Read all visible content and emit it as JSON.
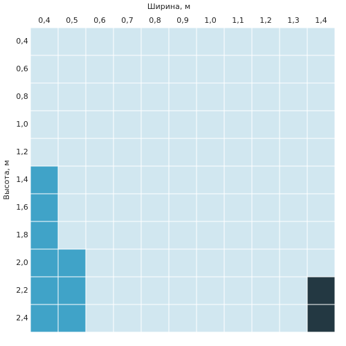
{
  "chart_data": {
    "type": "heatmap",
    "x_label": "Ширина, м",
    "y_label": "Высота, м",
    "x_categories": [
      "0,4",
      "0,5",
      "0,6",
      "0,7",
      "0,8",
      "0,9",
      "1,0",
      "1,1",
      "1,2",
      "1,3",
      "1,4"
    ],
    "y_categories": [
      "0,4",
      "0,6",
      "0,8",
      "1,0",
      "1,2",
      "1,4",
      "1,6",
      "1,8",
      "2,0",
      "2,2",
      "2,4"
    ],
    "cell_colors": [
      [
        "#d1e7f0",
        "#d1e7f0",
        "#d1e7f0",
        "#d1e7f0",
        "#d1e7f0",
        "#d1e7f0",
        "#d1e7f0",
        "#d1e7f0",
        "#d1e7f0",
        "#d1e7f0",
        "#d1e7f0"
      ],
      [
        "#d1e7f0",
        "#d1e7f0",
        "#d1e7f0",
        "#d1e7f0",
        "#d1e7f0",
        "#d1e7f0",
        "#d1e7f0",
        "#d1e7f0",
        "#d1e7f0",
        "#d1e7f0",
        "#d1e7f0"
      ],
      [
        "#d1e7f0",
        "#d1e7f0",
        "#d1e7f0",
        "#d1e7f0",
        "#d1e7f0",
        "#d1e7f0",
        "#d1e7f0",
        "#d1e7f0",
        "#d1e7f0",
        "#d1e7f0",
        "#d1e7f0"
      ],
      [
        "#d1e7f0",
        "#d1e7f0",
        "#d1e7f0",
        "#d1e7f0",
        "#d1e7f0",
        "#d1e7f0",
        "#d1e7f0",
        "#d1e7f0",
        "#d1e7f0",
        "#d1e7f0",
        "#d1e7f0"
      ],
      [
        "#d1e7f0",
        "#d1e7f0",
        "#d1e7f0",
        "#d1e7f0",
        "#d1e7f0",
        "#d1e7f0",
        "#d1e7f0",
        "#d1e7f0",
        "#d1e7f0",
        "#d1e7f0",
        "#d1e7f0"
      ],
      [
        "#40a3c8",
        "#d1e7f0",
        "#d1e7f0",
        "#d1e7f0",
        "#d1e7f0",
        "#d1e7f0",
        "#d1e7f0",
        "#d1e7f0",
        "#d1e7f0",
        "#d1e7f0",
        "#d1e7f0"
      ],
      [
        "#40a3c8",
        "#d1e7f0",
        "#d1e7f0",
        "#d1e7f0",
        "#d1e7f0",
        "#d1e7f0",
        "#d1e7f0",
        "#d1e7f0",
        "#d1e7f0",
        "#d1e7f0",
        "#d1e7f0"
      ],
      [
        "#40a3c8",
        "#d1e7f0",
        "#d1e7f0",
        "#d1e7f0",
        "#d1e7f0",
        "#d1e7f0",
        "#d1e7f0",
        "#d1e7f0",
        "#d1e7f0",
        "#d1e7f0",
        "#d1e7f0"
      ],
      [
        "#40a3c8",
        "#40a3c8",
        "#d1e7f0",
        "#d1e7f0",
        "#d1e7f0",
        "#d1e7f0",
        "#d1e7f0",
        "#d1e7f0",
        "#d1e7f0",
        "#d1e7f0",
        "#d1e7f0"
      ],
      [
        "#40a3c8",
        "#40a3c8",
        "#d1e7f0",
        "#d1e7f0",
        "#d1e7f0",
        "#d1e7f0",
        "#d1e7f0",
        "#d1e7f0",
        "#d1e7f0",
        "#d1e7f0",
        "#233842"
      ],
      [
        "#40a3c8",
        "#40a3c8",
        "#d1e7f0",
        "#d1e7f0",
        "#d1e7f0",
        "#d1e7f0",
        "#d1e7f0",
        "#d1e7f0",
        "#d1e7f0",
        "#d1e7f0",
        "#233842"
      ]
    ]
  }
}
